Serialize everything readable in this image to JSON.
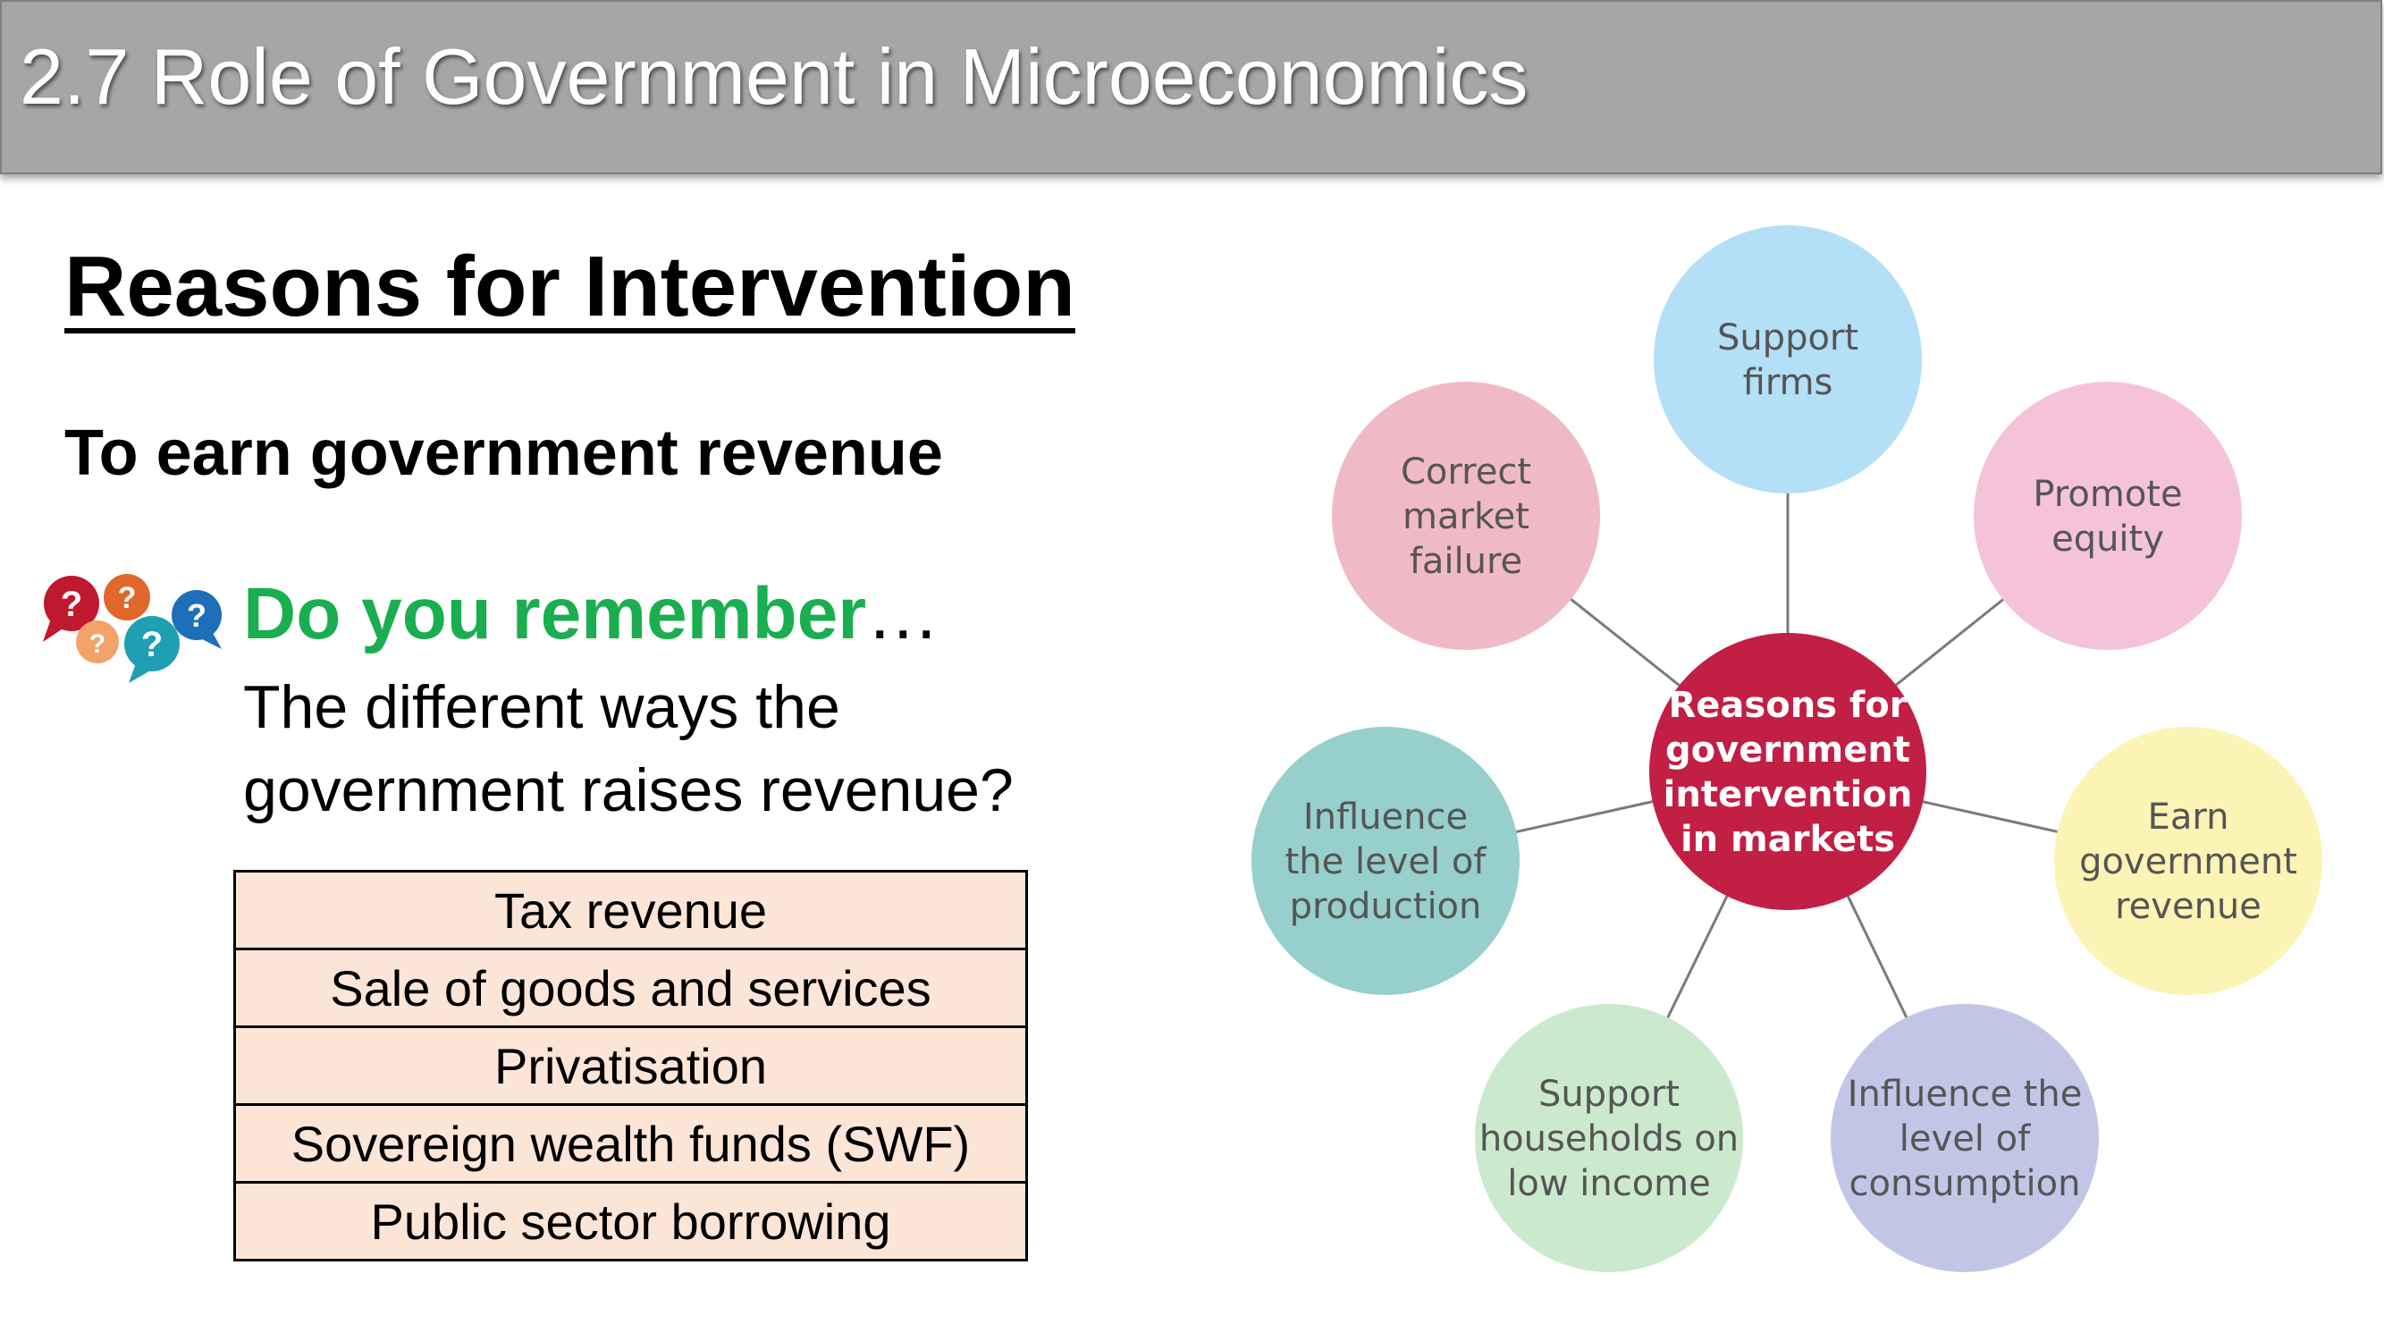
{
  "header": {
    "title": "2.7 Role of Government in Microeconomics"
  },
  "main": {
    "heading": "Reasons for Intervention",
    "subheading": "To earn government revenue",
    "remember": {
      "label": "Do you remember",
      "dots": "…"
    },
    "question_lines": [
      "The different ways the",
      "government raises revenue?"
    ],
    "revenue_methods": [
      "Tax revenue",
      "Sale of goods and services",
      "Privatisation",
      "Sovereign wealth funds (SWF)",
      "Public sector borrowing"
    ]
  },
  "icons": {
    "question_icons": "question-speech-bubbles-icon",
    "question_mark": "?"
  },
  "diagram": {
    "center": {
      "lines": [
        "Reasons for",
        "government",
        "intervention",
        "in markets"
      ],
      "color": "#c21f45"
    },
    "bubbles": [
      {
        "lines": [
          "Support",
          "firms"
        ],
        "color": "#b3dff7"
      },
      {
        "lines": [
          "Promote",
          "equity"
        ],
        "color": "#f5c3d9"
      },
      {
        "lines": [
          "Earn",
          "government",
          "revenue"
        ],
        "color": "#fbf4b5"
      },
      {
        "lines": [
          "Influence the",
          "level of",
          "consumption"
        ],
        "color": "#c2c6e6"
      },
      {
        "lines": [
          "Support",
          "households on",
          "low income"
        ],
        "color": "#cae9cd"
      },
      {
        "lines": [
          "Influence",
          "the level of",
          "production"
        ],
        "color": "#96cfcb"
      },
      {
        "lines": [
          "Correct",
          "market",
          "failure"
        ],
        "color": "#f0b9c6"
      }
    ]
  },
  "colors": {
    "title_bar": "#a6a6a6",
    "remember_green": "#1aae50",
    "table_fill": "#fbe5d6"
  }
}
